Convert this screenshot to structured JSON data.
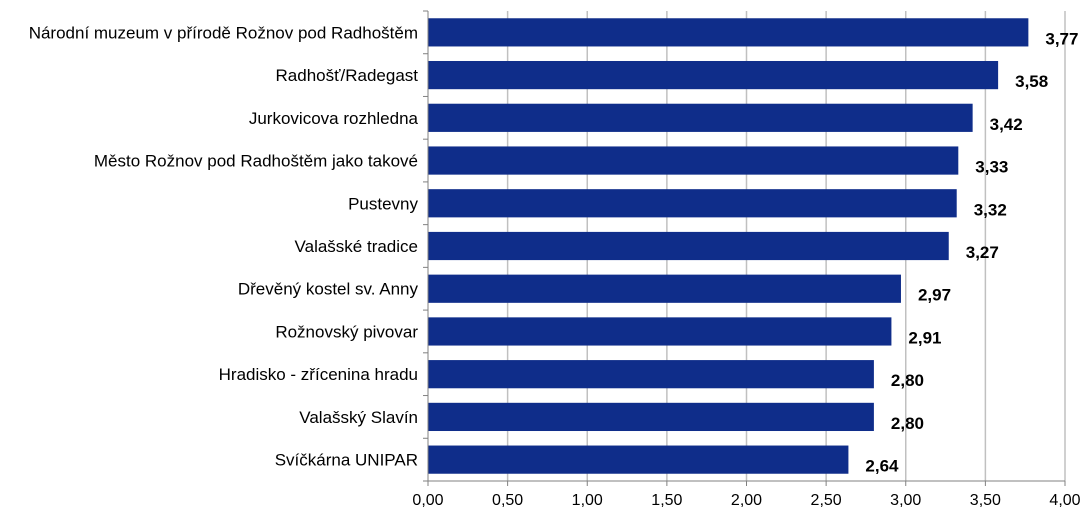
{
  "chart_data": {
    "type": "bar",
    "orientation": "horizontal",
    "categories": [
      "Národní muzeum v přírodě Rožnov pod Radhoštěm",
      "Radhošť/Radegast",
      "Jurkovicova rozhledna",
      "Město Rožnov pod Radhoštěm jako takové",
      "Pustevny",
      "Valašské tradice",
      "Dřevěný kostel sv. Anny",
      "Rožnovský pivovar",
      "Hradisko - zřícenina hradu",
      "Valašský Slavín",
      "Svíčkárna UNIPAR"
    ],
    "values": [
      3.77,
      3.58,
      3.42,
      3.33,
      3.32,
      3.27,
      2.97,
      2.91,
      2.8,
      2.8,
      2.64
    ],
    "value_labels": [
      "3,77",
      "3,58",
      "3,42",
      "3,33",
      "3,32",
      "3,27",
      "2,97",
      "2,91",
      "2,80",
      "2,80",
      "2,64"
    ],
    "xlim": [
      0,
      4
    ],
    "x_ticks": [
      0,
      0.5,
      1,
      1.5,
      2,
      2.5,
      3,
      3.5,
      4
    ],
    "x_tick_labels": [
      "0,00",
      "0,50",
      "1,00",
      "1,50",
      "2,00",
      "2,50",
      "3,00",
      "3,50",
      "4,00"
    ],
    "grid": "vertical",
    "bar_color": "#0f2d8a",
    "grid_color": "#c0c0c0",
    "title": "",
    "xlabel": "",
    "ylabel": ""
  }
}
